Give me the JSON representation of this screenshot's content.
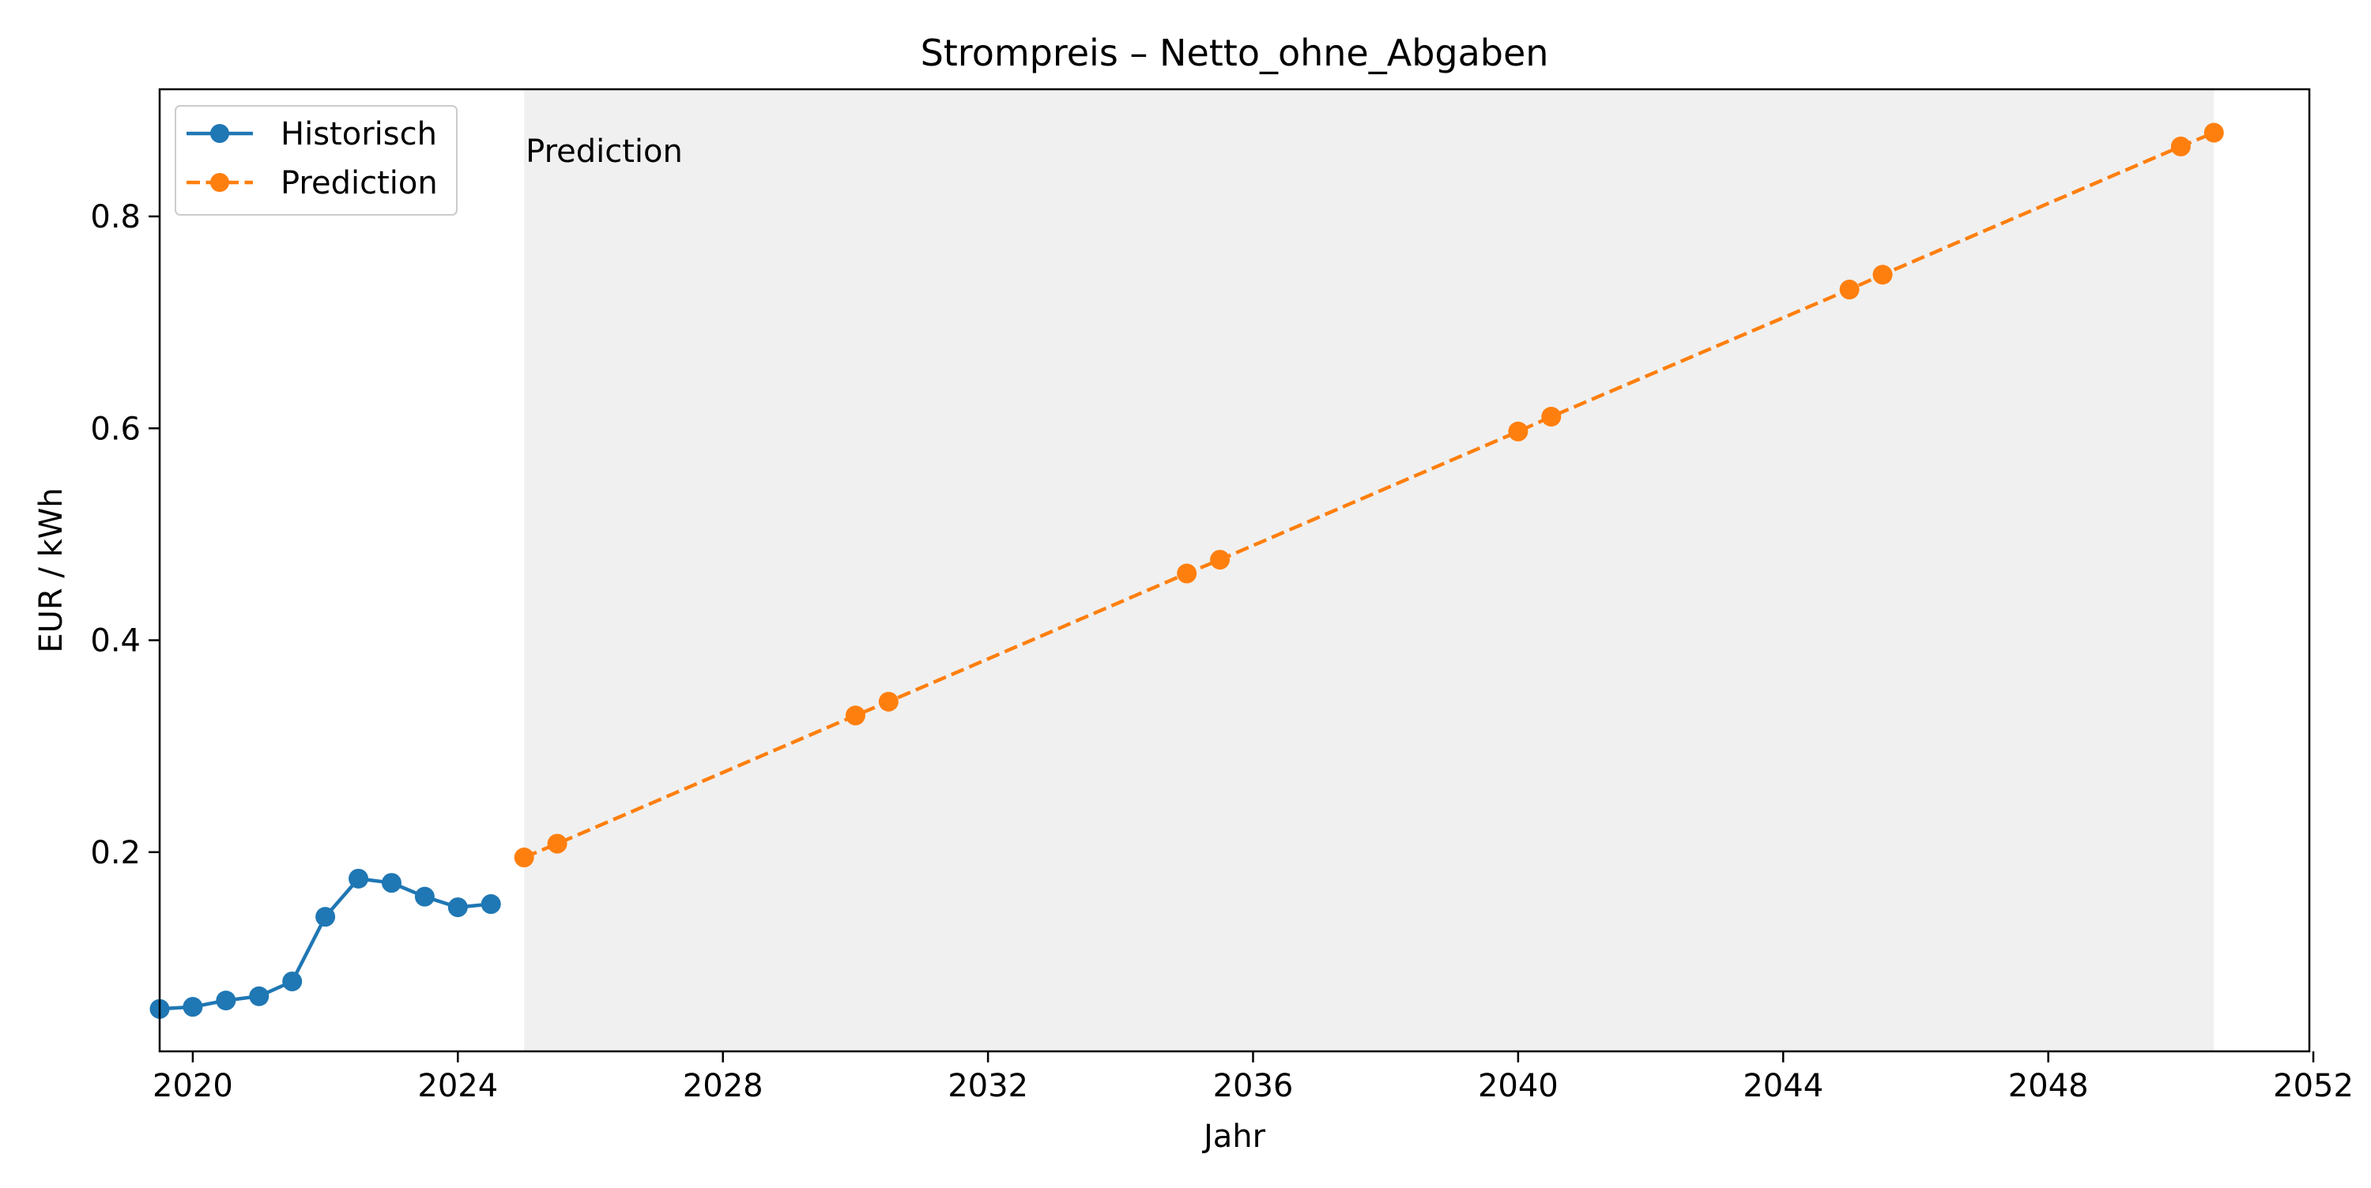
{
  "chart_data": {
    "type": "line",
    "title": "Strompreis – Netto_ohne_Abgaben",
    "xlabel": "Jahr",
    "ylabel": "EUR / kWh",
    "xlim": [
      2019.5,
      2051.94
    ],
    "ylim": [
      0.012,
      0.92
    ],
    "xticks": [
      2020,
      2024,
      2028,
      2032,
      2036,
      2040,
      2044,
      2048,
      2052
    ],
    "yticks": [
      0.2,
      0.4,
      0.6,
      0.8
    ],
    "grid": false,
    "legend_position": "top-left",
    "prediction_region": {
      "label": "Prediction",
      "x_start": 2025.0,
      "x_end": 2050.5,
      "color": "#f0f0f0"
    },
    "series": [
      {
        "name": "Historisch",
        "color": "#1f77b4",
        "line_style": "solid",
        "marker": "circle",
        "x": [
          2019.5,
          2020.0,
          2020.5,
          2021.0,
          2021.5,
          2022.0,
          2022.5,
          2023.0,
          2023.5,
          2024.0,
          2024.5
        ],
        "y": [
          0.052,
          0.054,
          0.06,
          0.064,
          0.078,
          0.139,
          0.175,
          0.171,
          0.158,
          0.148,
          0.151
        ]
      },
      {
        "name": "Prediction",
        "color": "#ff7f0e",
        "line_style": "dashed",
        "marker": "circle",
        "x": [
          2025.0,
          2025.5,
          2030.0,
          2030.5,
          2035.0,
          2035.5,
          2040.0,
          2040.5,
          2045.0,
          2045.5,
          2050.0,
          2050.5
        ],
        "y": [
          0.195,
          0.208,
          0.329,
          0.342,
          0.463,
          0.476,
          0.597,
          0.611,
          0.731,
          0.745,
          0.866,
          0.879
        ]
      }
    ]
  }
}
